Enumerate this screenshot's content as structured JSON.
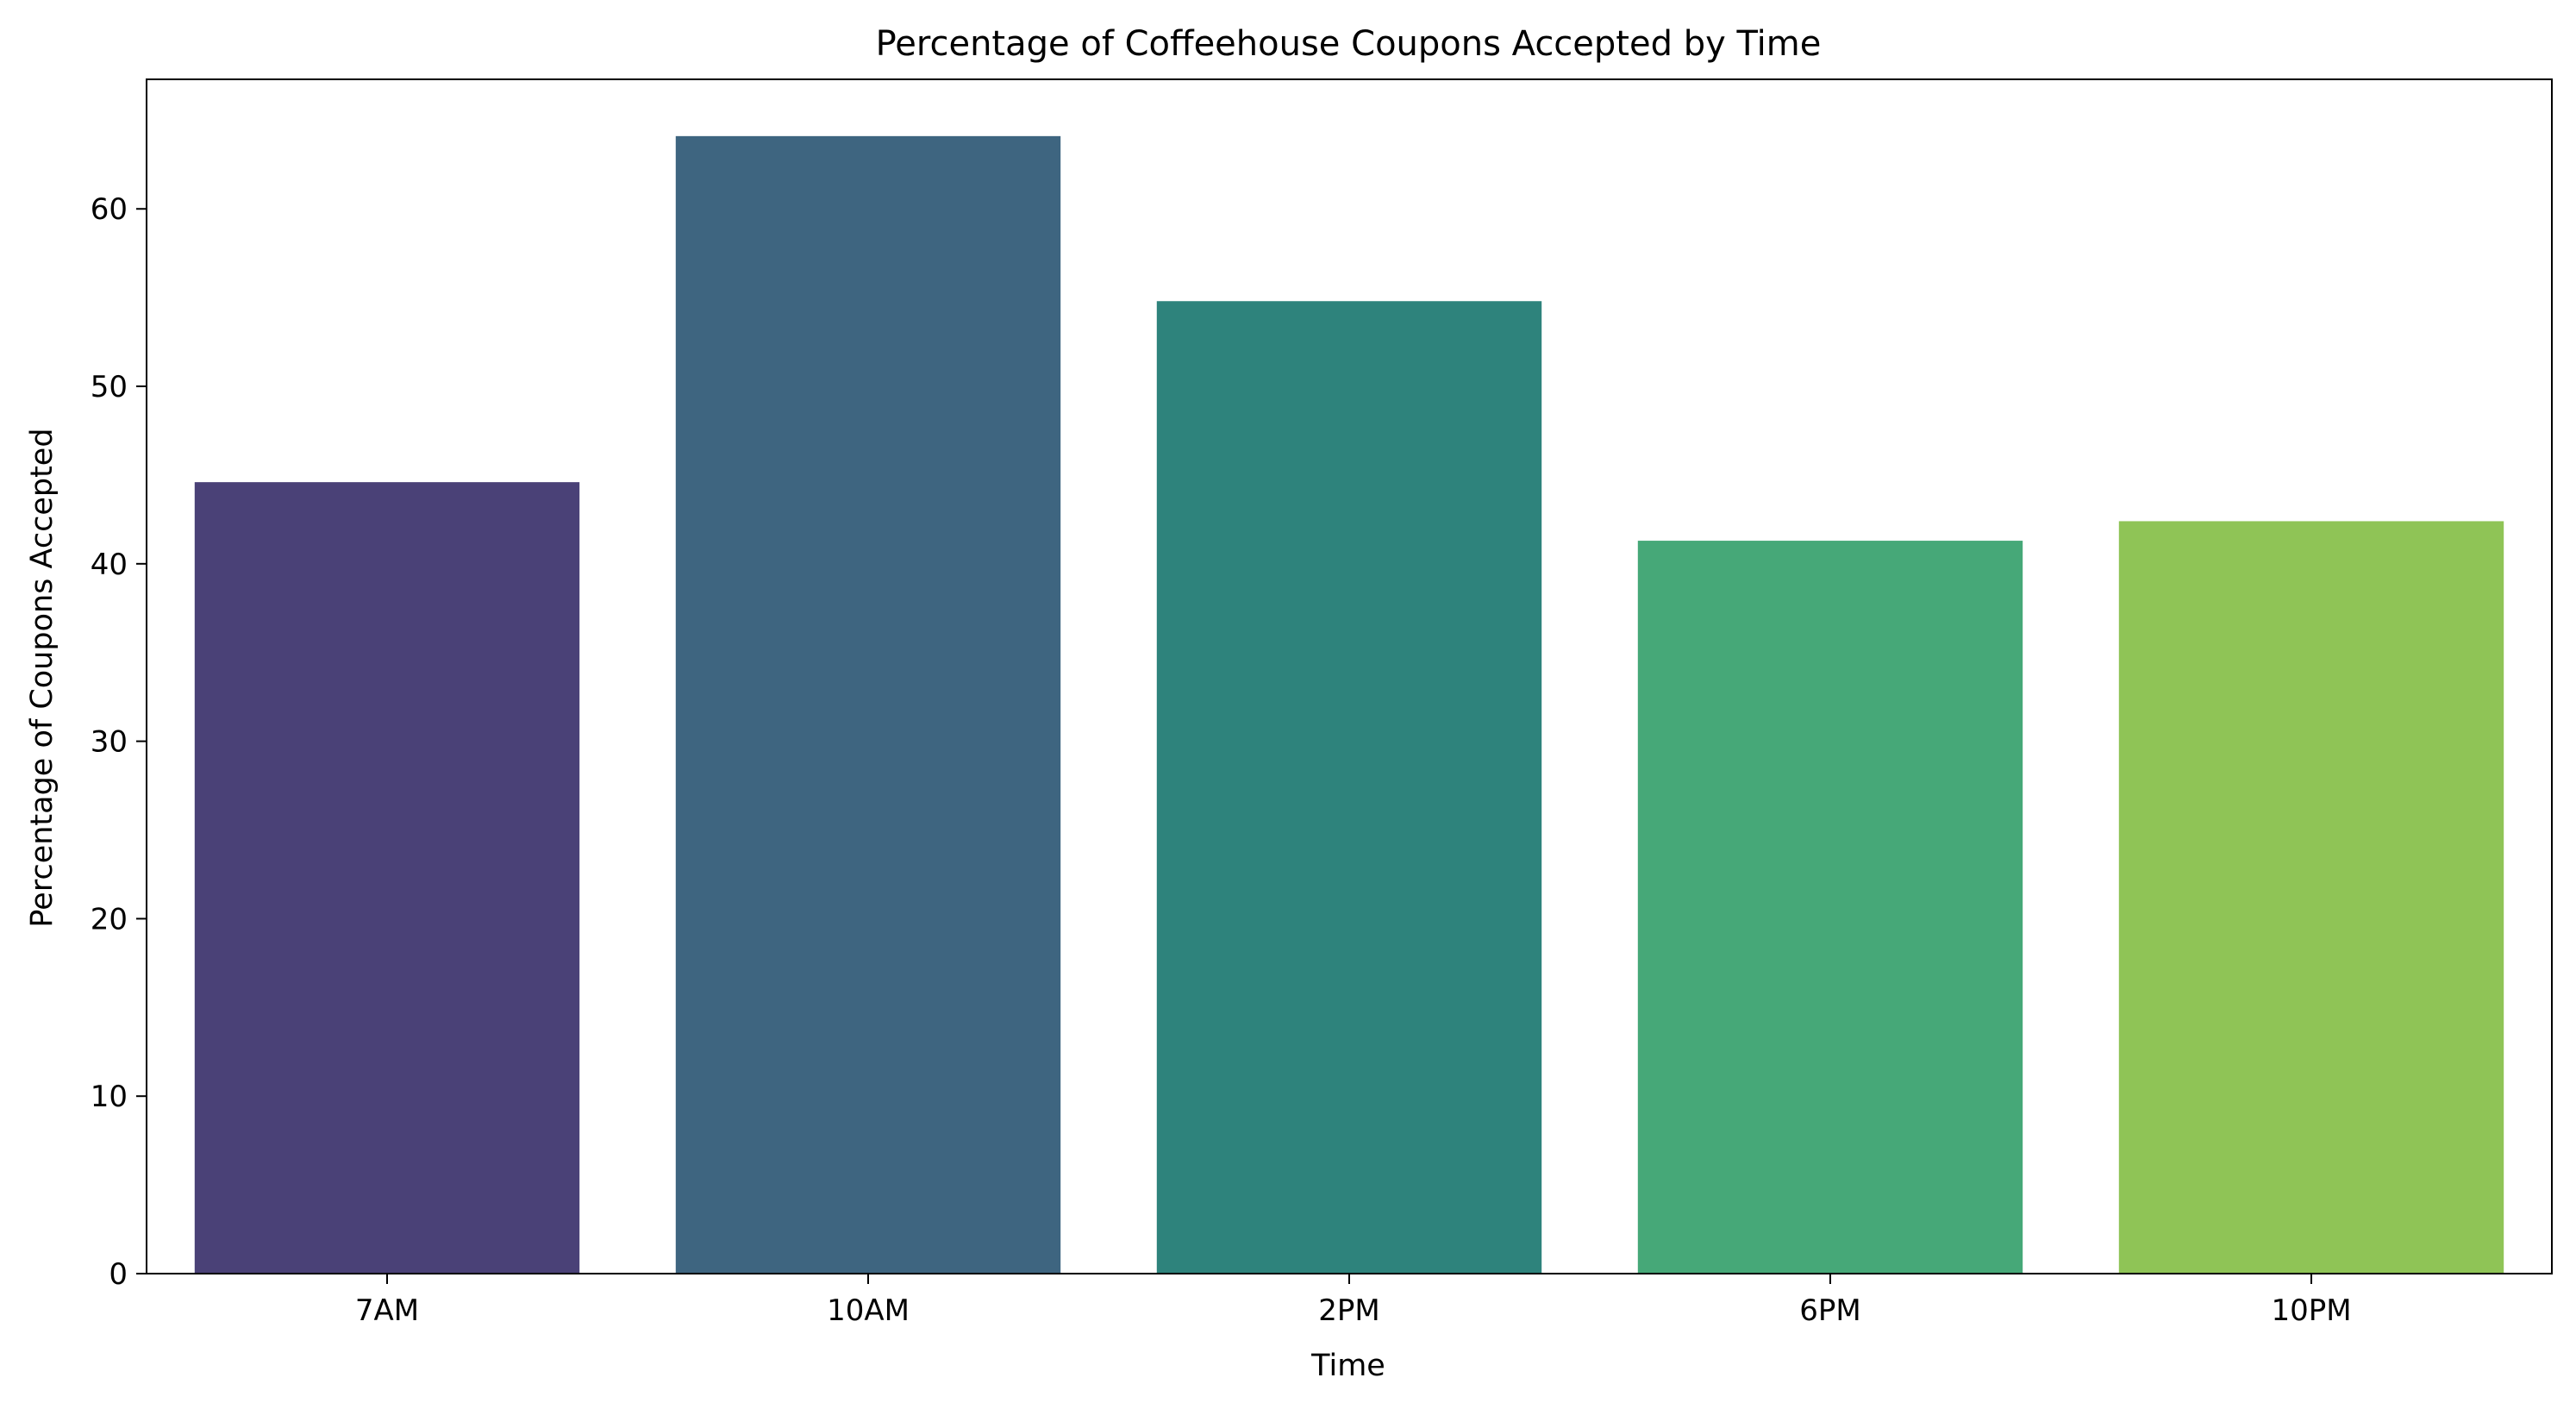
{
  "chart_data": {
    "type": "bar",
    "title": "Percentage of Coffeehouse Coupons Accepted by Time",
    "xlabel": "Time",
    "ylabel": "Percentage of Coupons Accepted",
    "categories": [
      "7AM",
      "10AM",
      "2PM",
      "6PM",
      "10PM"
    ],
    "values": [
      44.6,
      64.1,
      54.8,
      41.3,
      42.4
    ],
    "colors": [
      "#4a4177",
      "#3e6580",
      "#2e837c",
      "#46a878",
      "#8fc456"
    ],
    "ylim": [
      0,
      67.3
    ],
    "yticks": [
      0,
      10,
      20,
      30,
      40,
      50,
      60
    ],
    "grid": false,
    "legend": "none"
  }
}
